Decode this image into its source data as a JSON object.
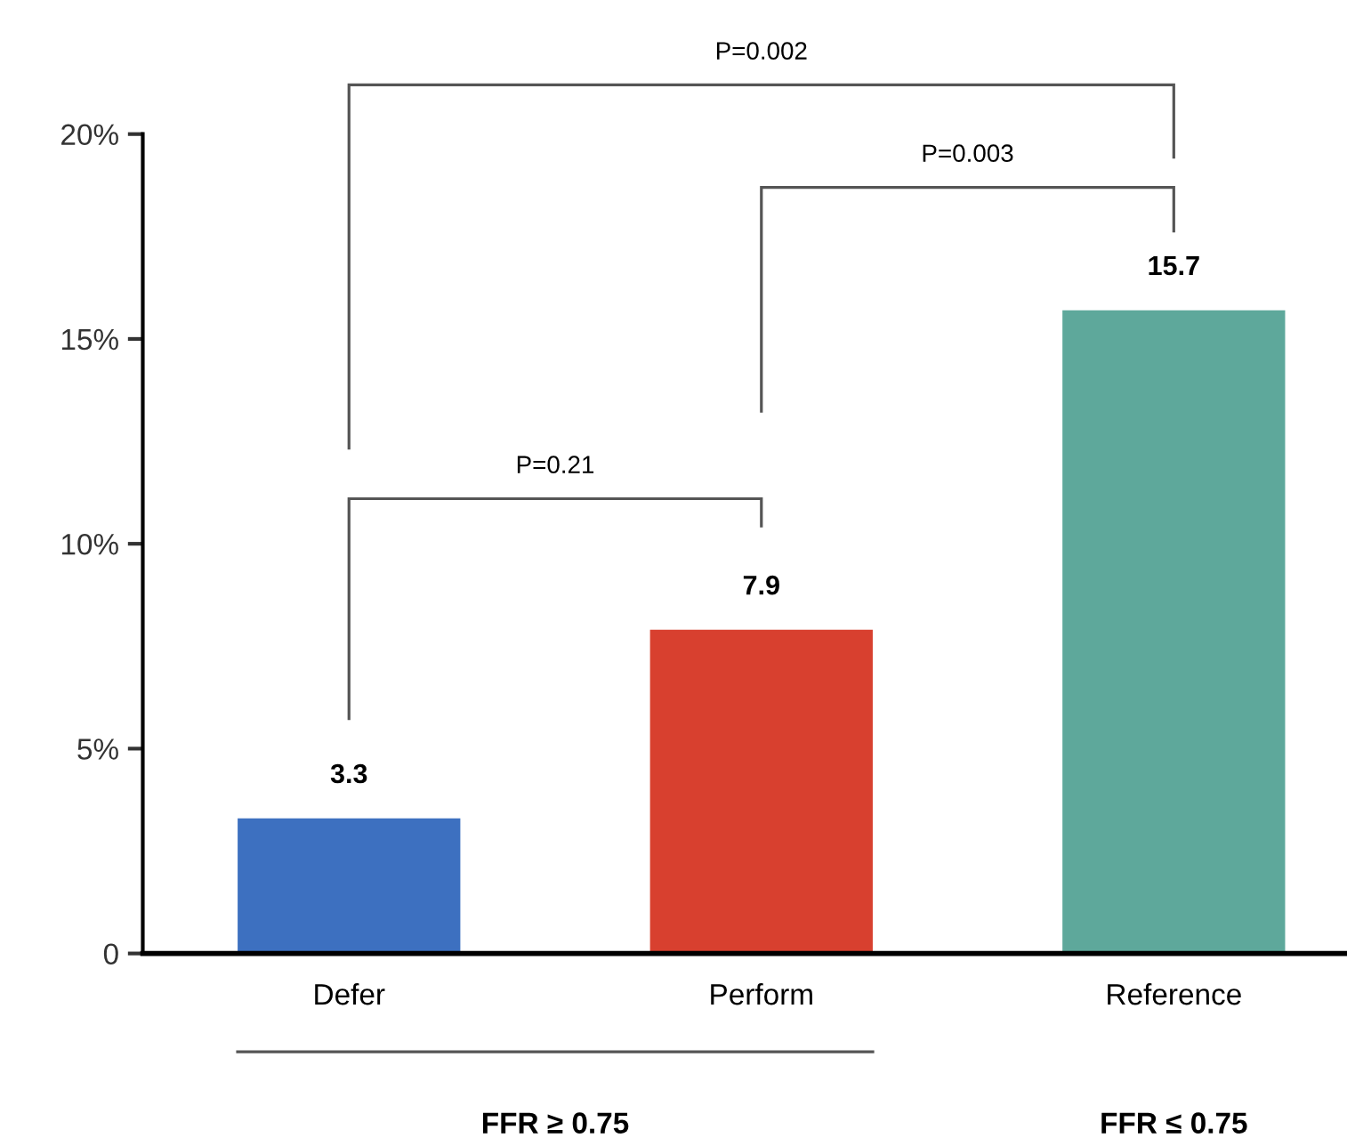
{
  "chart_data": {
    "type": "bar",
    "categories": [
      "Defer",
      "Perform",
      "Reference"
    ],
    "values": [
      3.3,
      7.9,
      15.7
    ],
    "colors": [
      "#3d70c0",
      "#d8402f",
      "#5ea89b"
    ],
    "ylim": [
      0,
      20
    ],
    "yticks": [
      0,
      {
        "value": 5,
        "label": "5%"
      },
      {
        "value": 10,
        "label": "10%"
      },
      {
        "value": 15,
        "label": "15%"
      },
      {
        "value": 20,
        "label": "20%"
      }
    ],
    "data_labels": true,
    "grid": false,
    "annotations": [
      "P=0.21",
      "P=0.003",
      "P=0.002",
      "FFR ≥ 0.75",
      "FFR ≤ 0.75"
    ]
  }
}
